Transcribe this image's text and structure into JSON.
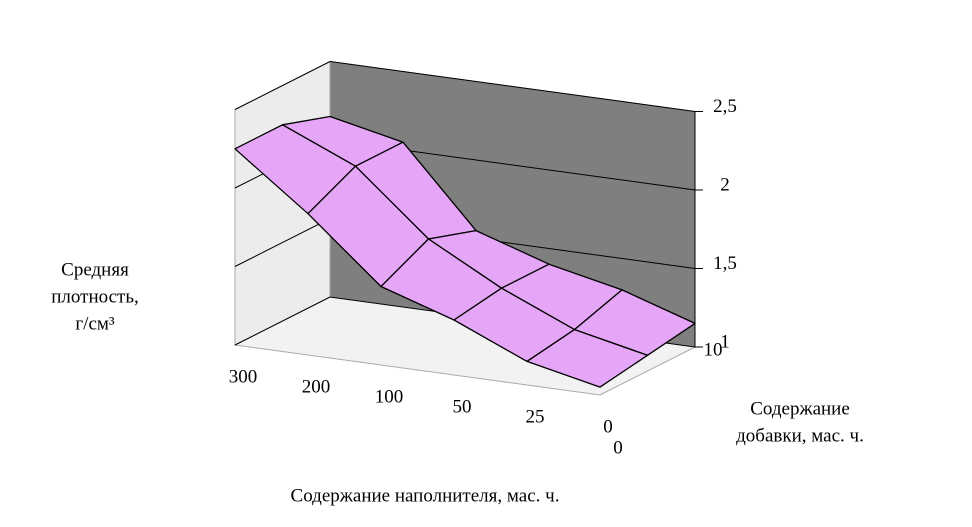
{
  "chart_data": {
    "type": "surface3d",
    "z_title": [
      "Средняя",
      "плотность,",
      "г/см³"
    ],
    "x_title": "Содержание наполнителя,  мас. ч.",
    "depth_title": [
      "Содержание",
      "добавки, мас. ч."
    ],
    "categories": [
      "300",
      "200",
      "100",
      "50",
      "25",
      "0"
    ],
    "depth_categories": [
      "0",
      null,
      "10"
    ],
    "series": [
      {
        "values": [
          2.25,
          1.9,
          1.5,
          1.35,
          1.15,
          1.05
        ]
      },
      {
        "values": [
          2.25,
          2.05,
          1.65,
          1.4,
          1.2,
          1.1
        ]
      },
      {
        "values": [
          2.15,
          2.05,
          1.55,
          1.4,
          1.3,
          1.15
        ]
      }
    ],
    "color": "#e6a6f7",
    "zlim": [
      1,
      2.5
    ],
    "zticks": [
      1,
      {
        "value": 1.5,
        "label": "1,5"
      },
      2,
      {
        "value": 2.5,
        "label": "2,5"
      }
    ],
    "grid": true
  }
}
